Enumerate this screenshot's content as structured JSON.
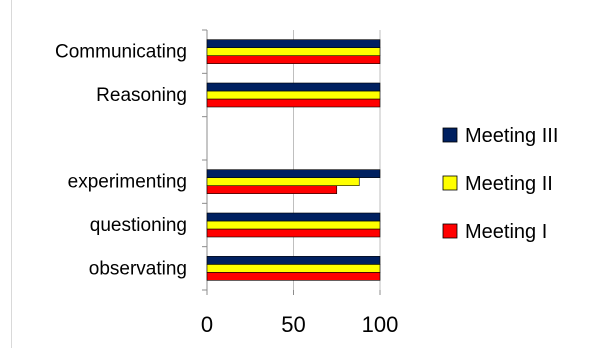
{
  "chart_data": {
    "type": "bar",
    "orientation": "horizontal",
    "categories": [
      "observating",
      "questioning",
      "experimenting",
      "",
      "Reasoning",
      "Communicating"
    ],
    "series": [
      {
        "name": "Meeting I",
        "color": "#ff0000",
        "values": [
          100,
          100,
          75,
          null,
          100,
          100
        ]
      },
      {
        "name": "Meeting II",
        "color": "#ffff00",
        "values": [
          100,
          100,
          88,
          null,
          100,
          100
        ]
      },
      {
        "name": "Meeting III",
        "color": "#002060",
        "values": [
          100,
          100,
          100,
          null,
          100,
          100
        ]
      }
    ],
    "xlim": [
      0,
      100
    ],
    "xticks": [
      0,
      50,
      100
    ],
    "grid": true,
    "legend_position": "right"
  }
}
